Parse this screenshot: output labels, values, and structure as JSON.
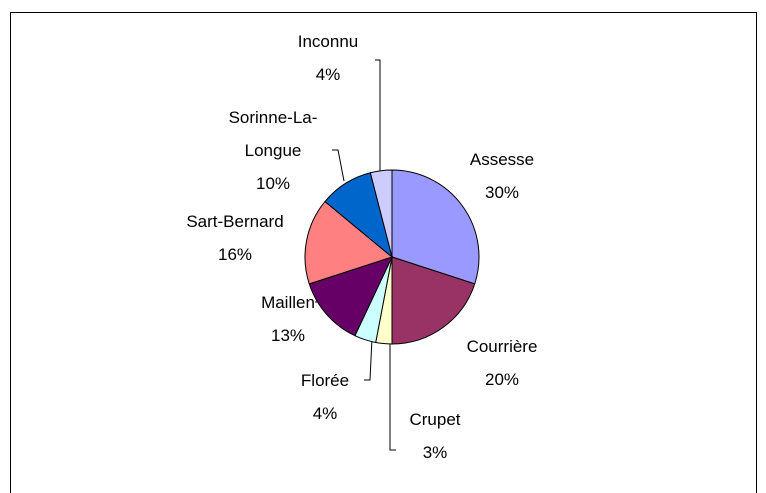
{
  "chart_data": {
    "type": "pie",
    "categories": [
      "Assesse",
      "Courrière",
      "Crupet",
      "Florée",
      "Maillen",
      "Sart-Bernard",
      "Sorinne-La-Longue",
      "Inconnu"
    ],
    "values": [
      30,
      20,
      3,
      4,
      13,
      16,
      10,
      4
    ],
    "value_labels": [
      "30%",
      "20%",
      "3%",
      "4%",
      "13%",
      "16%",
      "10%",
      "4%"
    ],
    "colors": [
      "#9999ff",
      "#993366",
      "#ffffcc",
      "#ccffff",
      "#660066",
      "#ff8080",
      "#0066cc",
      "#ccccff"
    ]
  }
}
